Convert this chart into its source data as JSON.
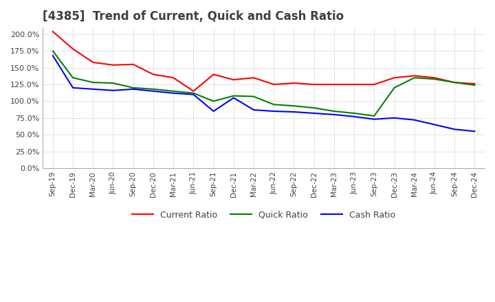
{
  "title": "[4385]  Trend of Current, Quick and Cash Ratio",
  "x_labels": [
    "Sep-19",
    "Dec-19",
    "Mar-20",
    "Jun-20",
    "Sep-20",
    "Dec-20",
    "Mar-21",
    "Jun-21",
    "Sep-21",
    "Dec-21",
    "Mar-22",
    "Jun-22",
    "Sep-22",
    "Dec-22",
    "Mar-23",
    "Jun-23",
    "Sep-23",
    "Dec-23",
    "Mar-24",
    "Jun-24",
    "Sep-24",
    "Dec-24"
  ],
  "current_ratio": [
    204,
    178,
    158,
    154,
    155,
    140,
    135,
    115,
    140,
    132,
    135,
    125,
    127,
    125,
    125,
    125,
    125,
    135,
    138,
    135,
    128,
    126
  ],
  "quick_ratio": [
    175,
    135,
    128,
    127,
    120,
    118,
    115,
    112,
    100,
    108,
    107,
    95,
    93,
    90,
    85,
    82,
    78,
    120,
    135,
    133,
    128,
    124
  ],
  "cash_ratio": [
    168,
    120,
    118,
    116,
    118,
    115,
    112,
    110,
    85,
    105,
    87,
    85,
    84,
    82,
    80,
    77,
    73,
    75,
    72,
    65,
    58,
    55
  ],
  "ylim": [
    0,
    210
  ],
  "yticks": [
    0,
    25,
    50,
    75,
    100,
    125,
    150,
    175,
    200
  ],
  "grid_color": "#aaaaaa",
  "current_color": "#ff0000",
  "quick_color": "#008000",
  "cash_color": "#0000ff",
  "background_color": "#ffffff",
  "title_color": "#404040",
  "title_fontsize": 12
}
